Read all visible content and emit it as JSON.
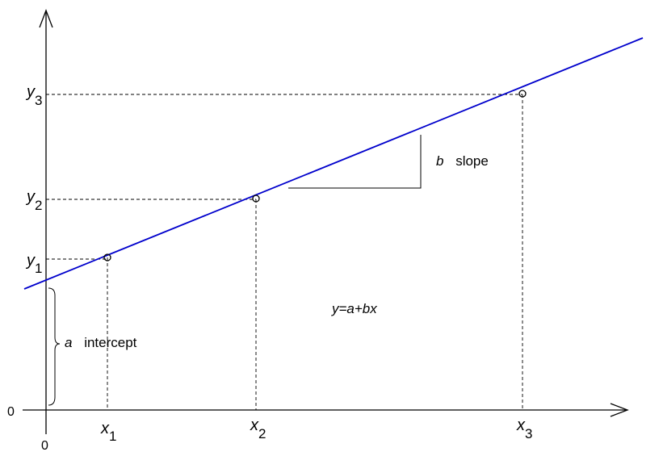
{
  "diagram": {
    "title": "",
    "equation": "y=a+bx",
    "axes": {
      "origin_y_label": "0",
      "origin_x_label": "0"
    },
    "points": [
      {
        "name": "point-1",
        "x_label": "x",
        "x_sub": "1",
        "y_label": "y",
        "y_sub": "1"
      },
      {
        "name": "point-2",
        "x_label": "x",
        "x_sub": "2",
        "y_label": "y",
        "y_sub": "2"
      },
      {
        "name": "point-3",
        "x_label": "x",
        "x_sub": "3",
        "y_label": "y",
        "y_sub": "3"
      }
    ],
    "slope": {
      "symbol": "b",
      "label": "slope"
    },
    "intercept": {
      "symbol": "a",
      "label": "intercept"
    },
    "colors": {
      "line": "#0000cc",
      "axes": "#000000",
      "guides": "#000000"
    }
  }
}
